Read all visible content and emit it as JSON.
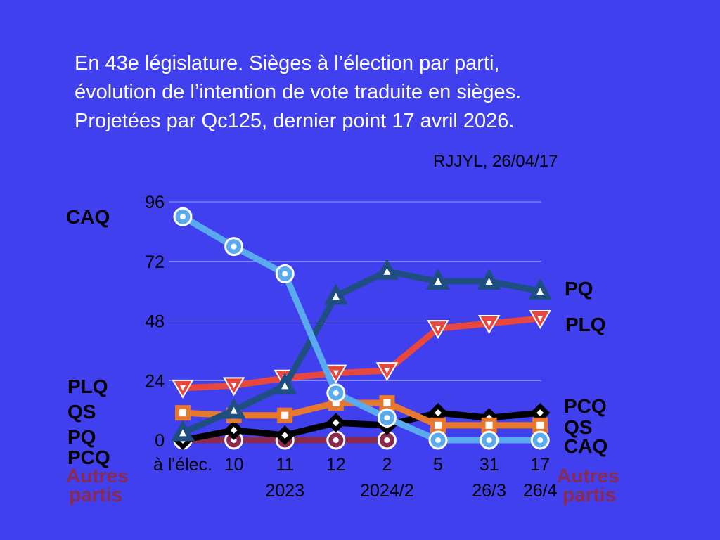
{
  "title_lines": [
    "En 43e législature. Sièges à l’élection par parti,",
    "évolution de l’intention de vote traduite en sièges.",
    "Projetées par Qc125, dernier point 17 avril 2026."
  ],
  "credit": "RJJYL, 26/04/17",
  "colors": {
    "background": "#4040ee",
    "grid": "#9a9af5"
  },
  "chart_data": {
    "type": "line",
    "title": "En 43e législature. Sièges à l’élection par parti, évolution de l’intention de vote traduite en sièges. Projetées par Qc125, dernier point 17 avril 2026.",
    "categories": [
      "à l'élec.",
      "10",
      "11",
      "12",
      "2",
      "5",
      "31",
      "17"
    ],
    "year_labels": [
      {
        "text": "2023",
        "under": 2
      },
      {
        "text": "2024/2",
        "under": 4
      },
      {
        "text": "26/3",
        "under": 6
      },
      {
        "text": "26/4",
        "under": 7
      }
    ],
    "yticks": [
      0,
      24,
      48,
      72,
      96
    ],
    "ylim": [
      0,
      96
    ],
    "grid": true,
    "series": [
      {
        "name": "Autres partis",
        "color": "#8b2a4e",
        "marker": "circle",
        "values": [
          0,
          0,
          0,
          0,
          0,
          null,
          null,
          null
        ]
      },
      {
        "name": "PCQ",
        "color": "#000000",
        "marker": "diamond",
        "values": [
          0,
          4,
          2,
          7,
          6,
          11,
          9,
          11
        ]
      },
      {
        "name": "QS",
        "color": "#e8782e",
        "marker": "square",
        "values": [
          11,
          10,
          10,
          15,
          15,
          6,
          6,
          6
        ]
      },
      {
        "name": "PLQ",
        "color": "#e8473d",
        "marker": "triangle-down",
        "values": [
          21,
          22,
          25,
          27,
          28,
          45,
          47,
          49
        ]
      },
      {
        "name": "PQ",
        "color": "#1f4f80",
        "marker": "triangle-up",
        "values": [
          3,
          12,
          22,
          58,
          68,
          64,
          64,
          60
        ]
      },
      {
        "name": "CAQ",
        "color": "#5aaaf0",
        "marker": "circle",
        "values": [
          90,
          78,
          67,
          19,
          9,
          0,
          0,
          0
        ]
      }
    ],
    "left_labels": [
      {
        "text": "CAQ",
        "color": "#000000"
      },
      {
        "text": "PLQ",
        "color": "#000000"
      },
      {
        "text": "QS",
        "color": "#000000"
      },
      {
        "text": "PQ",
        "color": "#000000"
      },
      {
        "text": "PCQ",
        "color": "#000000"
      },
      {
        "text": "Autres",
        "color": "#8b2a4e"
      },
      {
        "text": "partis",
        "color": "#8b2a4e"
      }
    ],
    "right_labels": [
      {
        "text": "PQ",
        "color": "#000000"
      },
      {
        "text": "PLQ",
        "color": "#000000"
      },
      {
        "text": "PCQ",
        "color": "#000000"
      },
      {
        "text": "QS",
        "color": "#000000"
      },
      {
        "text": "CAQ",
        "color": "#000000"
      },
      {
        "text": "Autres",
        "color": "#8b2a4e"
      },
      {
        "text": "partis",
        "color": "#8b2a4e"
      }
    ]
  }
}
